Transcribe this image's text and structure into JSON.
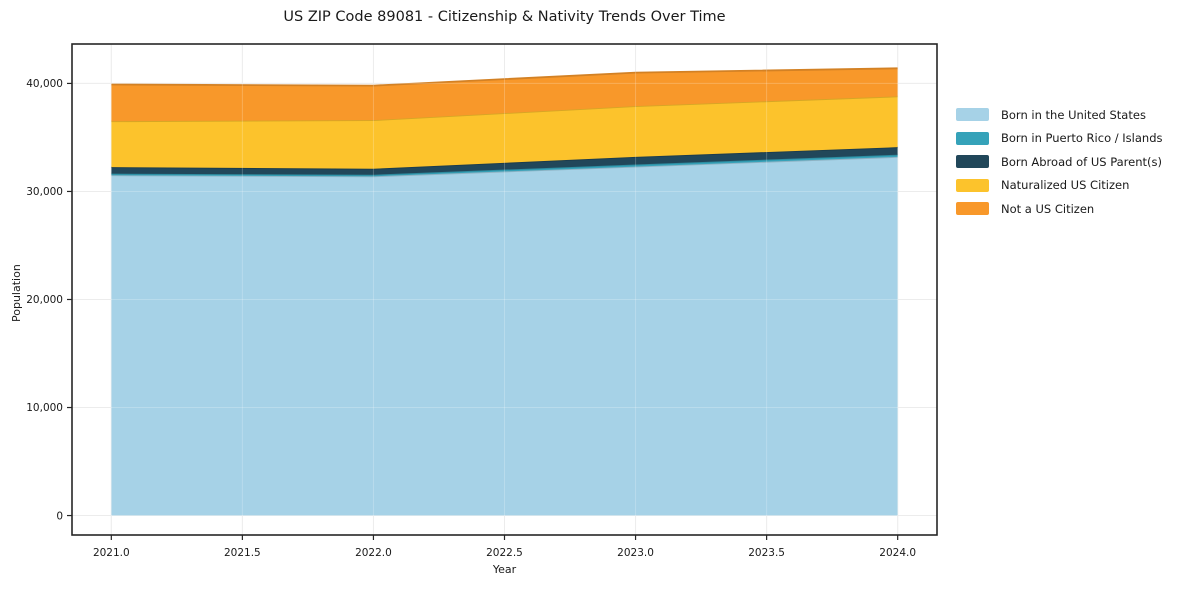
{
  "figure": {
    "background": "#ffffff",
    "spine_color": "#262626",
    "grid_color": "#e7e7e7"
  },
  "chart_data": {
    "type": "area",
    "stacked": true,
    "title": "US ZIP Code 89081 - Citizenship & Nativity Trends Over Time",
    "xlabel": "Year",
    "ylabel": "Population",
    "x": [
      2021,
      2022,
      2023,
      2024
    ],
    "series": [
      {
        "name": "Born in the United States",
        "color": "#a6d2e7",
        "values": [
          31500,
          31400,
          32300,
          33200
        ]
      },
      {
        "name": "Born in Puerto Rico / Islands",
        "color": "#35a2b9",
        "values": [
          150,
          150,
          200,
          200
        ]
      },
      {
        "name": "Born Abroad of US Parent(s)",
        "color": "#21475a",
        "values": [
          600,
          550,
          700,
          700
        ]
      },
      {
        "name": "Naturalized US Citizen",
        "color": "#fcc32c",
        "values": [
          4250,
          4500,
          4700,
          4700
        ]
      },
      {
        "name": "Not a US Citizen",
        "color": "#f8982a",
        "values": [
          3400,
          3200,
          3100,
          2600
        ]
      }
    ],
    "x_ticks": {
      "values": [
        2021.0,
        2021.5,
        2022.0,
        2022.5,
        2023.0,
        2023.5,
        2024.0
      ],
      "labels": [
        "2021.0",
        "2021.5",
        "2022.0",
        "2022.5",
        "2023.0",
        "2023.5",
        "2024.0"
      ]
    },
    "y_ticks": {
      "values": [
        0,
        10000,
        20000,
        30000,
        40000
      ],
      "labels": [
        "0",
        "10,000",
        "20,000",
        "30,000",
        "40,000"
      ]
    },
    "xlim": [
      2020.85,
      2024.15
    ],
    "ylim": [
      -1800,
      43650
    ],
    "grid": true,
    "legend_position": "outside-right-top"
  }
}
